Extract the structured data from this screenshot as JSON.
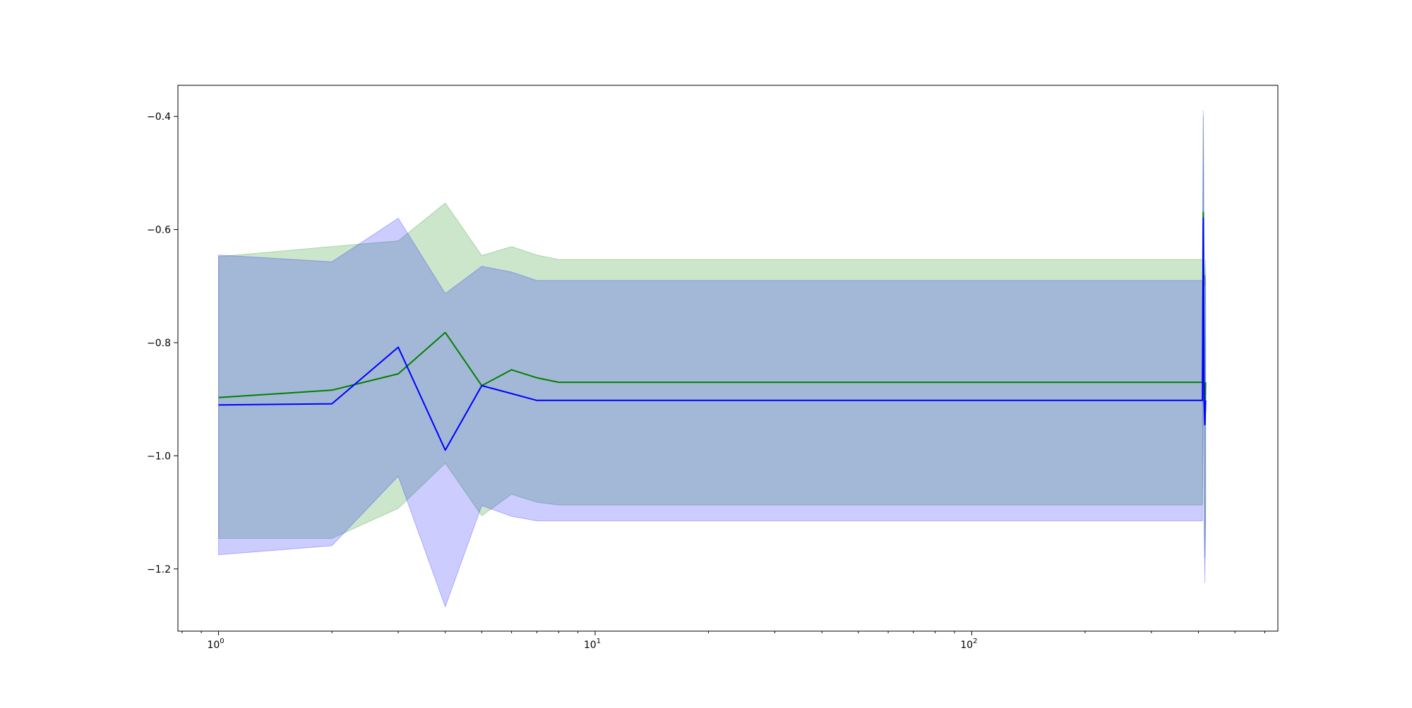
{
  "chart_data": {
    "type": "line",
    "title": "",
    "xlabel": "",
    "ylabel": "",
    "xscale": "log",
    "xlim": [
      0.78,
      650
    ],
    "ylim": [
      -1.31,
      -0.345
    ],
    "grid": false,
    "legend": "none",
    "x_ticks": [
      {
        "base": "10",
        "exp": "0",
        "value": 1
      },
      {
        "base": "10",
        "exp": "1",
        "value": 10
      },
      {
        "base": "10",
        "exp": "2",
        "value": 100
      }
    ],
    "y_ticks": [
      {
        "label": "−0.4",
        "value": -0.4
      },
      {
        "label": "−0.6",
        "value": -0.6
      },
      {
        "label": "−0.8",
        "value": -0.8
      },
      {
        "label": "−1.0",
        "value": -1.0
      },
      {
        "label": "−1.2",
        "value": -1.2
      }
    ],
    "series": [
      {
        "color": "#008000",
        "band_color": "#008000",
        "band_opacity": 0.2,
        "x": [
          1,
          2,
          3,
          4,
          5,
          6,
          7,
          8,
          100,
          200,
          300,
          400,
          410,
          412,
          414,
          416,
          418
        ],
        "y": [
          -0.897,
          -0.884,
          -0.855,
          -0.782,
          -0.876,
          -0.848,
          -0.862,
          -0.87,
          -0.87,
          -0.87,
          -0.87,
          -0.87,
          -0.87,
          -0.57,
          -0.87,
          -0.94,
          -0.87
        ],
        "upper": [
          -0.648,
          -0.63,
          -0.62,
          -0.553,
          -0.646,
          -0.63,
          -0.645,
          -0.653,
          -0.653,
          -0.653,
          -0.653,
          -0.653,
          -0.653,
          -0.4,
          -0.653,
          -0.7,
          -0.653
        ],
        "lower": [
          -1.146,
          -1.146,
          -1.093,
          -1.013,
          -1.106,
          -1.068,
          -1.082,
          -1.087,
          -1.087,
          -1.087,
          -1.087,
          -1.087,
          -1.087,
          -0.74,
          -1.087,
          -1.18,
          -1.087
        ]
      },
      {
        "color": "#0000ff",
        "band_color": "#0000ff",
        "band_opacity": 0.2,
        "x": [
          1,
          2,
          3,
          4,
          5,
          6,
          7,
          8,
          100,
          200,
          300,
          400,
          410,
          412,
          414,
          416,
          418
        ],
        "y": [
          -0.91,
          -0.908,
          -0.808,
          -0.99,
          -0.876,
          -0.89,
          -0.902,
          -0.902,
          -0.902,
          -0.902,
          -0.902,
          -0.902,
          -0.902,
          -0.58,
          -0.902,
          -0.945,
          -0.902
        ],
        "upper": [
          -0.645,
          -0.657,
          -0.58,
          -0.713,
          -0.665,
          -0.675,
          -0.69,
          -0.69,
          -0.69,
          -0.69,
          -0.69,
          -0.69,
          -0.69,
          -0.39,
          -0.69,
          -0.68,
          -0.69
        ],
        "lower": [
          -1.175,
          -1.159,
          -1.036,
          -1.267,
          -1.088,
          -1.107,
          -1.115,
          -1.115,
          -1.115,
          -1.115,
          -1.115,
          -1.115,
          -1.115,
          -0.77,
          -1.115,
          -1.225,
          -1.115
        ]
      }
    ]
  }
}
